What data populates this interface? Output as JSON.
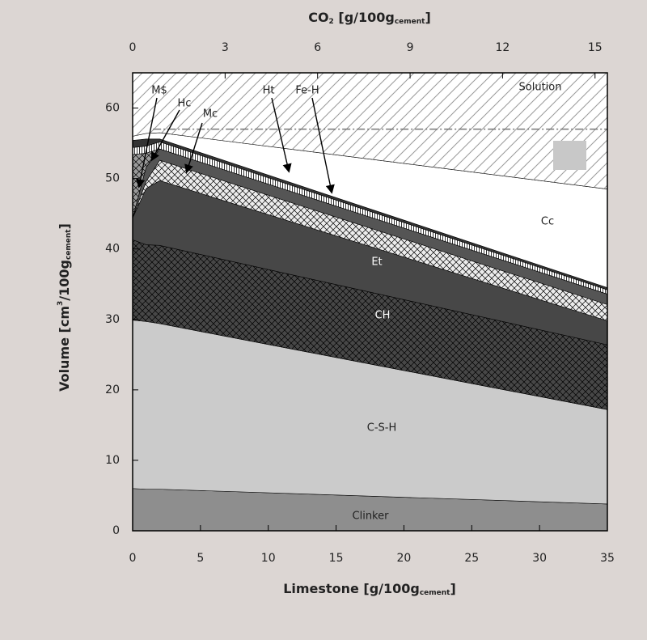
{
  "chart_data": {
    "type": "stacked_area",
    "x_label": [
      "Limestone [g/100g",
      "cement",
      "]"
    ],
    "y_label": [
      "Volume [cm",
      "3",
      "/100g",
      "cement",
      "]"
    ],
    "x2_label": [
      "CO",
      "2",
      " [g/100g",
      "cement",
      "]"
    ],
    "x": [
      0,
      1,
      2,
      35
    ],
    "xlim": [
      0,
      35
    ],
    "xticks": [
      0,
      5,
      10,
      15,
      20,
      25,
      30,
      35
    ],
    "x2lim": [
      0,
      15.4
    ],
    "x2ticks": [
      0,
      3,
      6,
      9,
      12,
      15
    ],
    "ylim": [
      0,
      65
    ],
    "yticks": [
      0,
      10,
      20,
      30,
      40,
      50,
      60
    ],
    "reference_lines": [
      57
    ],
    "series": [
      {
        "name": "Clinker",
        "color": "#8e8e8e",
        "pattern": null,
        "values": [
          6.0,
          5.9,
          5.9,
          3.8
        ]
      },
      {
        "name": "C-S-H",
        "color": "#cbcbcb",
        "pattern": null,
        "values": [
          23.9,
          23.8,
          23.5,
          13.4
        ]
      },
      {
        "name": "CH",
        "color": "#474747",
        "pattern": "crosshatch",
        "values": [
          11.4,
          10.9,
          11.1,
          9.2
        ]
      },
      {
        "name": "Et",
        "color": "#474747",
        "pattern": null,
        "values": [
          3.1,
          8.0,
          9.2,
          3.4
        ]
      },
      {
        "name": "Mc",
        "color": "#ececec",
        "pattern": "crosshatch",
        "values": [
          0,
          1.0,
          2.9,
          2.3
        ]
      },
      {
        "name": "Hc",
        "color": "#555555",
        "pattern": null,
        "values": [
          0,
          2.0,
          1.6,
          1.5
        ]
      },
      {
        "name": "M$",
        "color": "#9a9a9a",
        "pattern": "crosshatch",
        "values": [
          9.0,
          2.0,
          0,
          0
        ]
      },
      {
        "name": "Ht",
        "color": "#ffffff",
        "pattern": "vlines",
        "values": [
          1.0,
          1.0,
          1.0,
          0.6
        ]
      },
      {
        "name": "Fe-H",
        "color": "#333333",
        "pattern": null,
        "values": [
          1.0,
          1.0,
          0.4,
          0.3
        ]
      },
      {
        "name": "Cc",
        "color": "#ffffff",
        "pattern": null,
        "values": [
          0.6,
          0.8,
          0.9,
          14.0
        ]
      },
      {
        "name": "Solution",
        "color": "#ffffff",
        "pattern": "diagonal",
        "values": [
          9.0,
          8.6,
          8.5,
          16.5
        ]
      }
    ]
  }
}
